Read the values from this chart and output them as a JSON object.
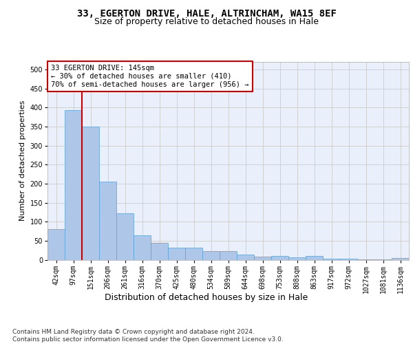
{
  "title1": "33, EGERTON DRIVE, HALE, ALTRINCHAM, WA15 8EF",
  "title2": "Size of property relative to detached houses in Hale",
  "xlabel": "Distribution of detached houses by size in Hale",
  "ylabel": "Number of detached properties",
  "categories": [
    "42sqm",
    "97sqm",
    "151sqm",
    "206sqm",
    "261sqm",
    "316sqm",
    "370sqm",
    "425sqm",
    "480sqm",
    "534sqm",
    "589sqm",
    "644sqm",
    "698sqm",
    "753sqm",
    "808sqm",
    "863sqm",
    "917sqm",
    "972sqm",
    "1027sqm",
    "1081sqm",
    "1136sqm"
  ],
  "values": [
    80,
    393,
    350,
    205,
    122,
    64,
    44,
    32,
    32,
    23,
    23,
    14,
    9,
    10,
    7,
    10,
    3,
    3,
    1,
    1,
    4
  ],
  "bar_color": "#aec6e8",
  "bar_edge_color": "#5a9fd4",
  "annotation_box_text": "33 EGERTON DRIVE: 145sqm\n← 30% of detached houses are smaller (410)\n70% of semi-detached houses are larger (956) →",
  "annotation_box_color": "#ffffff",
  "annotation_box_edge_color": "#cc0000",
  "vline_x": 1.5,
  "vline_color": "#cc0000",
  "ylim": [
    0,
    520
  ],
  "yticks": [
    0,
    50,
    100,
    150,
    200,
    250,
    300,
    350,
    400,
    450,
    500
  ],
  "grid_color": "#cccccc",
  "background_color": "#eaf0fb",
  "footer_text": "Contains HM Land Registry data © Crown copyright and database right 2024.\nContains public sector information licensed under the Open Government Licence v3.0.",
  "title1_fontsize": 10,
  "title2_fontsize": 9,
  "xlabel_fontsize": 9,
  "ylabel_fontsize": 8,
  "tick_fontsize": 7,
  "footer_fontsize": 6.5,
  "ann_fontsize": 7.5
}
